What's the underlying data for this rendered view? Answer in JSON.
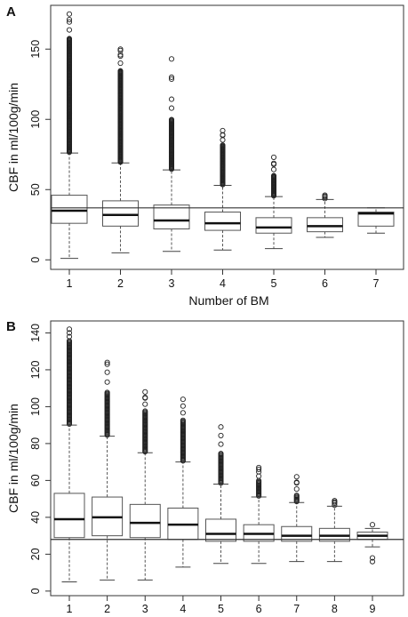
{
  "chart_data": [
    {
      "type": "box",
      "panel_label": "A",
      "xlabel": "Number of BM",
      "ylabel": "CBF in ml/100g/min",
      "categories": [
        "1",
        "2",
        "3",
        "4",
        "5",
        "6",
        "7"
      ],
      "y_ticks": [
        0,
        50,
        100,
        150
      ],
      "ylim": [
        -3,
        178
      ],
      "reference_line": 37,
      "boxes": [
        {
          "min": 1,
          "q1": 26,
          "median": 35,
          "q3": 46,
          "max": 76,
          "outlier_max": 175,
          "dense_to": 158,
          "extra_outliers": [
            171
          ]
        },
        {
          "min": 5,
          "q1": 24,
          "median": 32,
          "q3": 42,
          "max": 69,
          "outlier_max": 150,
          "dense_to": 135,
          "extra_outliers": [
            146,
            149
          ]
        },
        {
          "min": 6,
          "q1": 22,
          "median": 28,
          "q3": 39,
          "max": 64,
          "outlier_max": 143,
          "dense_to": 100,
          "extra_outliers": [
            130,
            108
          ]
        },
        {
          "min": 7,
          "q1": 21,
          "median": 26,
          "q3": 34,
          "max": 53,
          "outlier_max": 92,
          "dense_to": 82,
          "extra_outliers": [
            89
          ]
        },
        {
          "min": 8,
          "q1": 19,
          "median": 23,
          "q3": 30,
          "max": 45,
          "outlier_max": 73,
          "dense_to": 60,
          "extra_outliers": [
            68
          ]
        },
        {
          "min": 16,
          "q1": 20,
          "median": 24,
          "q3": 30,
          "max": 43,
          "outlier_max": 46,
          "dense_to": 44,
          "extra_outliers": []
        },
        {
          "min": 19,
          "q1": 24,
          "median": 33,
          "q3": 34,
          "max": 37,
          "outlier_max": null,
          "dense_to": null,
          "extra_outliers": []
        }
      ]
    },
    {
      "type": "box",
      "panel_label": "B",
      "xlabel": "Number of BM",
      "ylabel": "CBF in ml/100g/min",
      "categories": [
        "1",
        "2",
        "3",
        "4",
        "5",
        "6",
        "7",
        "8",
        "9"
      ],
      "y_ticks": [
        0,
        20,
        40,
        60,
        80,
        100,
        120,
        140
      ],
      "ylim": [
        -2,
        146
      ],
      "reference_line": 28,
      "boxes": [
        {
          "min": 5,
          "q1": 29,
          "median": 39,
          "q3": 53,
          "max": 90,
          "outlier_max": 142,
          "dense_to": 136,
          "extra_outliers": []
        },
        {
          "min": 6,
          "q1": 30,
          "median": 40,
          "q3": 51,
          "max": 84,
          "outlier_max": 124,
          "dense_to": 108,
          "extra_outliers": [
            123
          ]
        },
        {
          "min": 6,
          "q1": 29,
          "median": 37,
          "q3": 47,
          "max": 75,
          "outlier_max": 108,
          "dense_to": 98,
          "extra_outliers": [
            105
          ]
        },
        {
          "min": 13,
          "q1": 28,
          "median": 36,
          "q3": 45,
          "max": 70,
          "outlier_max": 104,
          "dense_to": 93,
          "extra_outliers": []
        },
        {
          "min": 15,
          "q1": 27,
          "median": 31,
          "q3": 39,
          "max": 58,
          "outlier_max": 89,
          "dense_to": 75,
          "extra_outliers": []
        },
        {
          "min": 15,
          "q1": 27,
          "median": 31,
          "q3": 36,
          "max": 51,
          "outlier_max": 67,
          "dense_to": 60,
          "extra_outliers": [
            66
          ]
        },
        {
          "min": 16,
          "q1": 27,
          "median": 30,
          "q3": 35,
          "max": 48,
          "outlier_max": 62,
          "dense_to": 52,
          "extra_outliers": [
            59
          ]
        },
        {
          "min": 16,
          "q1": 27,
          "median": 30,
          "q3": 34,
          "max": 46,
          "outlier_max": 49,
          "dense_to": 47,
          "extra_outliers": []
        },
        {
          "min": 24,
          "q1": 28,
          "median": 30,
          "q3": 32,
          "max": 34,
          "outlier_max": 36,
          "dense_to": null,
          "extra_outliers": [
            18,
            16
          ]
        }
      ]
    }
  ]
}
